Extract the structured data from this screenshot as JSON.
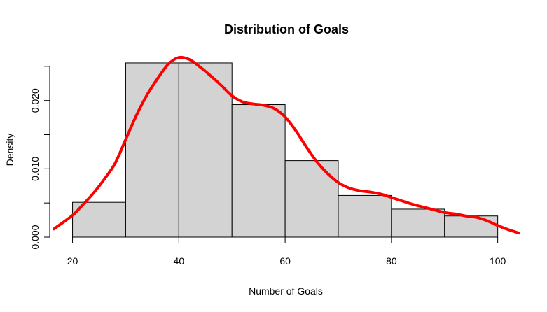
{
  "chart_data": {
    "type": "bar",
    "title": "Distribution of Goals",
    "xlabel": "Number of Goals",
    "ylabel": "Density",
    "bins": [
      {
        "x0": 20,
        "x1": 30,
        "value": 0.0051
      },
      {
        "x0": 30,
        "x1": 40,
        "value": 0.0255
      },
      {
        "x0": 40,
        "x1": 50,
        "value": 0.0255
      },
      {
        "x0": 50,
        "x1": 60,
        "value": 0.0194
      },
      {
        "x0": 60,
        "x1": 70,
        "value": 0.0112
      },
      {
        "x0": 70,
        "x1": 80,
        "value": 0.0061
      },
      {
        "x0": 80,
        "x1": 90,
        "value": 0.0041
      },
      {
        "x0": 90,
        "x1": 100,
        "value": 0.0031
      }
    ],
    "xticks": [
      "20",
      "40",
      "60",
      "80",
      "100"
    ],
    "yticks": [
      "0.000",
      "0.010",
      "0.020"
    ],
    "xlim": [
      16.5,
      104
    ],
    "ylim": [
      0,
      0.0257
    ],
    "density_curve": {
      "x": [
        16.5,
        20,
        22,
        24,
        26,
        28,
        30,
        32,
        34,
        36,
        38,
        40,
        42,
        44,
        46,
        48,
        50,
        52,
        54,
        56,
        58,
        60,
        62,
        64,
        66,
        68,
        70,
        72,
        74,
        76,
        78,
        80,
        82,
        84,
        86,
        88,
        90,
        92,
        94,
        96,
        98,
        100,
        102,
        104
      ],
      "y": [
        0.0012,
        0.0032,
        0.0048,
        0.0065,
        0.0085,
        0.0108,
        0.0143,
        0.0178,
        0.0208,
        0.0232,
        0.0253,
        0.0263,
        0.026,
        0.0249,
        0.0236,
        0.0222,
        0.0207,
        0.0198,
        0.0195,
        0.0193,
        0.0188,
        0.0176,
        0.0156,
        0.0132,
        0.011,
        0.0093,
        0.008,
        0.0072,
        0.0068,
        0.0066,
        0.0063,
        0.0058,
        0.0053,
        0.0048,
        0.0044,
        0.004,
        0.0036,
        0.0034,
        0.0031,
        0.0029,
        0.0024,
        0.0017,
        0.0011,
        0.0006
      ],
      "color": "#ff0000"
    },
    "bar_color": "#d3d3d3",
    "grid": false,
    "legend": "none"
  }
}
